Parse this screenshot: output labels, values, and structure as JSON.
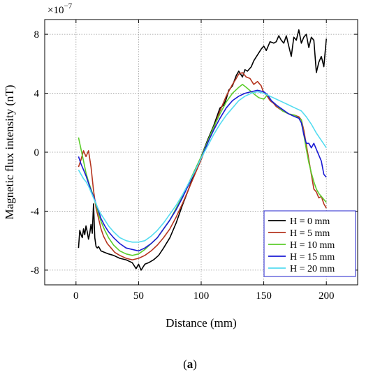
{
  "chart_data": {
    "type": "line",
    "title": "",
    "xlabel": "Distance (mm)",
    "ylabel": "Magnetic flux intensity (nT)",
    "y_multiplier_label": "×10",
    "y_multiplier_exponent": "−7",
    "xlim": [
      -25,
      225
    ],
    "ylim": [
      -9,
      9
    ],
    "xticks": [
      0,
      50,
      100,
      150,
      200
    ],
    "yticks": [
      -8,
      -4,
      0,
      4,
      8
    ],
    "xtick_labels": [
      "0",
      "50",
      "100",
      "150",
      "200"
    ],
    "ytick_labels": [
      "-8",
      "-4",
      "0",
      "4",
      "8"
    ],
    "grid": true,
    "legend_position": "bottom-right",
    "series": [
      {
        "name": "H = 0 mm",
        "color": "#000000",
        "points": [
          [
            2,
            -6.5
          ],
          [
            3,
            -5.3
          ],
          [
            4,
            -5.6
          ],
          [
            5,
            -5.8
          ],
          [
            6,
            -5.2
          ],
          [
            7,
            -5.6
          ],
          [
            8,
            -5.0
          ],
          [
            9,
            -5.4
          ],
          [
            10,
            -5.9
          ],
          [
            11,
            -5.5
          ],
          [
            12,
            -4.9
          ],
          [
            13,
            -5.5
          ],
          [
            14,
            -3.5
          ],
          [
            15,
            -5.8
          ],
          [
            16,
            -6.4
          ],
          [
            17,
            -6.5
          ],
          [
            18,
            -6.4
          ],
          [
            20,
            -6.7
          ],
          [
            23,
            -6.8
          ],
          [
            26,
            -6.9
          ],
          [
            30,
            -7.0
          ],
          [
            35,
            -7.2
          ],
          [
            40,
            -7.3
          ],
          [
            45,
            -7.5
          ],
          [
            48,
            -7.9
          ],
          [
            50,
            -7.6
          ],
          [
            52,
            -8.0
          ],
          [
            55,
            -7.6
          ],
          [
            58,
            -7.5
          ],
          [
            62,
            -7.3
          ],
          [
            66,
            -7.0
          ],
          [
            70,
            -6.5
          ],
          [
            75,
            -5.8
          ],
          [
            80,
            -4.8
          ],
          [
            85,
            -3.6
          ],
          [
            90,
            -2.5
          ],
          [
            95,
            -1.3
          ],
          [
            100,
            -0.3
          ],
          [
            105,
            0.8
          ],
          [
            110,
            1.8
          ],
          [
            115,
            3.0
          ],
          [
            118,
            3.2
          ],
          [
            120,
            3.6
          ],
          [
            122,
            4.2
          ],
          [
            125,
            4.5
          ],
          [
            128,
            5.2
          ],
          [
            130,
            5.5
          ],
          [
            133,
            5.1
          ],
          [
            135,
            5.6
          ],
          [
            137,
            5.5
          ],
          [
            140,
            5.8
          ],
          [
            142,
            6.2
          ],
          [
            145,
            6.6
          ],
          [
            148,
            7.0
          ],
          [
            150,
            7.2
          ],
          [
            152,
            6.9
          ],
          [
            155,
            7.5
          ],
          [
            158,
            7.4
          ],
          [
            160,
            7.5
          ],
          [
            162,
            7.9
          ],
          [
            164,
            7.6
          ],
          [
            166,
            7.4
          ],
          [
            168,
            7.9
          ],
          [
            170,
            7.2
          ],
          [
            172,
            6.5
          ],
          [
            174,
            7.8
          ],
          [
            176,
            7.6
          ],
          [
            178,
            8.3
          ],
          [
            180,
            7.4
          ],
          [
            182,
            7.8
          ],
          [
            184,
            8.0
          ],
          [
            186,
            7.1
          ],
          [
            188,
            7.8
          ],
          [
            190,
            7.6
          ],
          [
            192,
            5.4
          ],
          [
            194,
            6.1
          ],
          [
            196,
            6.5
          ],
          [
            198,
            5.8
          ],
          [
            200,
            7.7
          ]
        ]
      },
      {
        "name": "H = 5 mm",
        "color": "#b5351f",
        "points": [
          [
            2,
            -1.0
          ],
          [
            4,
            -0.5
          ],
          [
            6,
            0.1
          ],
          [
            8,
            -0.3
          ],
          [
            10,
            0.1
          ],
          [
            12,
            -1.0
          ],
          [
            14,
            -2.6
          ],
          [
            16,
            -3.8
          ],
          [
            18,
            -4.5
          ],
          [
            20,
            -5.2
          ],
          [
            22,
            -5.7
          ],
          [
            25,
            -6.2
          ],
          [
            28,
            -6.5
          ],
          [
            31,
            -6.8
          ],
          [
            35,
            -7.0
          ],
          [
            40,
            -7.2
          ],
          [
            45,
            -7.3
          ],
          [
            50,
            -7.2
          ],
          [
            55,
            -7.0
          ],
          [
            60,
            -6.7
          ],
          [
            65,
            -6.3
          ],
          [
            70,
            -5.8
          ],
          [
            75,
            -5.2
          ],
          [
            80,
            -4.4
          ],
          [
            85,
            -3.5
          ],
          [
            90,
            -2.5
          ],
          [
            95,
            -1.5
          ],
          [
            100,
            -0.5
          ],
          [
            105,
            0.6
          ],
          [
            110,
            1.6
          ],
          [
            115,
            2.8
          ],
          [
            120,
            3.8
          ],
          [
            125,
            4.6
          ],
          [
            128,
            5.0
          ],
          [
            130,
            5.3
          ],
          [
            133,
            5.4
          ],
          [
            136,
            5.1
          ],
          [
            139,
            5.0
          ],
          [
            142,
            4.6
          ],
          [
            145,
            4.8
          ],
          [
            148,
            4.5
          ],
          [
            150,
            4.0
          ],
          [
            152,
            3.9
          ],
          [
            155,
            3.5
          ],
          [
            158,
            3.3
          ],
          [
            160,
            3.1
          ],
          [
            165,
            2.8
          ],
          [
            170,
            2.6
          ],
          [
            175,
            2.5
          ],
          [
            178,
            2.4
          ],
          [
            180,
            2.2
          ],
          [
            182,
            1.5
          ],
          [
            184,
            0.5
          ],
          [
            186,
            -0.5
          ],
          [
            188,
            -1.5
          ],
          [
            190,
            -2.5
          ],
          [
            192,
            -2.7
          ],
          [
            194,
            -3.1
          ],
          [
            196,
            -3.0
          ],
          [
            198,
            -3.5
          ],
          [
            200,
            -3.8
          ]
        ]
      },
      {
        "name": "H = 10 mm",
        "color": "#5ccd2c",
        "points": [
          [
            2,
            1.0
          ],
          [
            4,
            0.2
          ],
          [
            6,
            -0.6
          ],
          [
            8,
            -1.4
          ],
          [
            10,
            -2.0
          ],
          [
            12,
            -2.5
          ],
          [
            14,
            -3.0
          ],
          [
            16,
            -3.6
          ],
          [
            18,
            -4.2
          ],
          [
            20,
            -4.7
          ],
          [
            23,
            -5.3
          ],
          [
            26,
            -5.8
          ],
          [
            30,
            -6.3
          ],
          [
            35,
            -6.7
          ],
          [
            40,
            -6.9
          ],
          [
            45,
            -7.0
          ],
          [
            50,
            -6.9
          ],
          [
            55,
            -6.6
          ],
          [
            60,
            -6.2
          ],
          [
            65,
            -5.8
          ],
          [
            70,
            -5.2
          ],
          [
            75,
            -4.6
          ],
          [
            80,
            -3.8
          ],
          [
            85,
            -3.0
          ],
          [
            90,
            -2.1
          ],
          [
            95,
            -1.2
          ],
          [
            100,
            -0.3
          ],
          [
            105,
            0.7
          ],
          [
            110,
            1.7
          ],
          [
            115,
            2.6
          ],
          [
            120,
            3.4
          ],
          [
            125,
            4.0
          ],
          [
            130,
            4.4
          ],
          [
            133,
            4.6
          ],
          [
            136,
            4.4
          ],
          [
            140,
            4.1
          ],
          [
            143,
            3.9
          ],
          [
            146,
            3.7
          ],
          [
            150,
            3.6
          ],
          [
            153,
            3.9
          ],
          [
            156,
            3.5
          ],
          [
            160,
            3.2
          ],
          [
            165,
            2.8
          ],
          [
            170,
            2.6
          ],
          [
            175,
            2.5
          ],
          [
            178,
            2.3
          ],
          [
            180,
            2.2
          ],
          [
            182,
            1.2
          ],
          [
            184,
            0.2
          ],
          [
            186,
            -0.7
          ],
          [
            188,
            -1.4
          ],
          [
            190,
            -2.0
          ],
          [
            192,
            -2.5
          ],
          [
            194,
            -2.8
          ],
          [
            196,
            -3.0
          ],
          [
            198,
            -3.2
          ],
          [
            200,
            -3.4
          ]
        ]
      },
      {
        "name": "H = 15 mm",
        "color": "#1a1ad4",
        "points": [
          [
            2,
            -0.3
          ],
          [
            4,
            -0.8
          ],
          [
            6,
            -1.2
          ],
          [
            8,
            -1.6
          ],
          [
            10,
            -2.1
          ],
          [
            12,
            -2.6
          ],
          [
            14,
            -3.0
          ],
          [
            16,
            -3.5
          ],
          [
            18,
            -4.0
          ],
          [
            20,
            -4.5
          ],
          [
            23,
            -5.0
          ],
          [
            26,
            -5.4
          ],
          [
            30,
            -5.8
          ],
          [
            35,
            -6.2
          ],
          [
            40,
            -6.5
          ],
          [
            45,
            -6.6
          ],
          [
            50,
            -6.7
          ],
          [
            55,
            -6.5
          ],
          [
            60,
            -6.2
          ],
          [
            65,
            -5.8
          ],
          [
            70,
            -5.2
          ],
          [
            75,
            -4.6
          ],
          [
            80,
            -3.9
          ],
          [
            85,
            -3.1
          ],
          [
            90,
            -2.2
          ],
          [
            95,
            -1.3
          ],
          [
            100,
            -0.4
          ],
          [
            105,
            0.6
          ],
          [
            110,
            1.5
          ],
          [
            115,
            2.3
          ],
          [
            120,
            3.0
          ],
          [
            125,
            3.5
          ],
          [
            130,
            3.8
          ],
          [
            135,
            4.0
          ],
          [
            140,
            4.1
          ],
          [
            145,
            4.2
          ],
          [
            150,
            4.1
          ],
          [
            153,
            3.9
          ],
          [
            156,
            3.5
          ],
          [
            160,
            3.2
          ],
          [
            165,
            2.9
          ],
          [
            170,
            2.6
          ],
          [
            175,
            2.4
          ],
          [
            178,
            2.3
          ],
          [
            180,
            2.0
          ],
          [
            182,
            1.2
          ],
          [
            184,
            0.6
          ],
          [
            186,
            0.6
          ],
          [
            188,
            0.3
          ],
          [
            190,
            0.6
          ],
          [
            192,
            0.2
          ],
          [
            194,
            -0.2
          ],
          [
            196,
            -0.6
          ],
          [
            198,
            -1.5
          ],
          [
            200,
            -1.7
          ]
        ]
      },
      {
        "name": "H = 20 mm",
        "color": "#54dcf0",
        "points": [
          [
            2,
            -1.2
          ],
          [
            4,
            -1.5
          ],
          [
            6,
            -1.8
          ],
          [
            8,
            -2.0
          ],
          [
            10,
            -2.3
          ],
          [
            12,
            -2.7
          ],
          [
            14,
            -3.1
          ],
          [
            16,
            -3.5
          ],
          [
            18,
            -3.9
          ],
          [
            20,
            -4.2
          ],
          [
            23,
            -4.6
          ],
          [
            26,
            -5.0
          ],
          [
            30,
            -5.4
          ],
          [
            35,
            -5.8
          ],
          [
            40,
            -6.0
          ],
          [
            45,
            -6.1
          ],
          [
            50,
            -6.1
          ],
          [
            55,
            -6.0
          ],
          [
            60,
            -5.7
          ],
          [
            65,
            -5.3
          ],
          [
            70,
            -4.8
          ],
          [
            75,
            -4.2
          ],
          [
            80,
            -3.6
          ],
          [
            85,
            -2.9
          ],
          [
            90,
            -2.1
          ],
          [
            95,
            -1.3
          ],
          [
            100,
            -0.4
          ],
          [
            105,
            0.4
          ],
          [
            110,
            1.2
          ],
          [
            115,
            1.9
          ],
          [
            120,
            2.5
          ],
          [
            125,
            3.0
          ],
          [
            130,
            3.5
          ],
          [
            135,
            3.8
          ],
          [
            140,
            4.0
          ],
          [
            145,
            4.1
          ],
          [
            150,
            4.0
          ],
          [
            155,
            3.8
          ],
          [
            160,
            3.6
          ],
          [
            165,
            3.4
          ],
          [
            170,
            3.2
          ],
          [
            175,
            3.0
          ],
          [
            180,
            2.8
          ],
          [
            184,
            2.4
          ],
          [
            188,
            1.9
          ],
          [
            192,
            1.3
          ],
          [
            196,
            0.8
          ],
          [
            200,
            0.3
          ]
        ]
      }
    ]
  },
  "panel_label": "(a)",
  "panel_label_parts": {
    "open": "(",
    "letter": "a",
    "close": ")"
  }
}
